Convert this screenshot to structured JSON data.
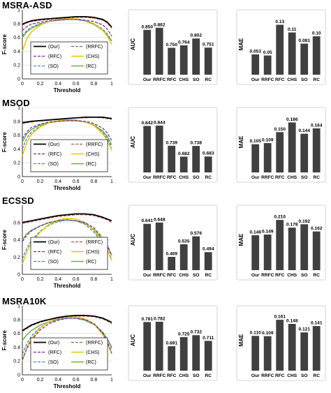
{
  "colors": {
    "bar": "#404040",
    "our": "#000000",
    "rrfc": "#c0504d",
    "rfc": "#7030a0",
    "chs": "#e8c600",
    "so": "#4f81bd",
    "rc": "#70ad47"
  },
  "chart_data": [
    {
      "type": "line",
      "dataset": "MSRA-ASD",
      "xlabel": "Threshold",
      "ylabel": "F-score",
      "xlim": [
        0,
        1
      ],
      "ylim": [
        0,
        1
      ],
      "xticks": [
        "0",
        "0.2",
        "0.4",
        "0.6",
        "0.8",
        "1"
      ],
      "yticks": [
        "0",
        "0.2",
        "0.4",
        "0.6",
        "0.8",
        "1"
      ],
      "legend": [
        "(Our)",
        "(RRFC)",
        "(RFC)",
        "(CHS)",
        "(SO)",
        "(RC)"
      ],
      "x": [
        0,
        0.05,
        0.1,
        0.2,
        0.3,
        0.4,
        0.5,
        0.6,
        0.7,
        0.8,
        0.9,
        0.95,
        1
      ],
      "series": [
        {
          "name": "(Our)",
          "values": [
            0.79,
            0.82,
            0.84,
            0.86,
            0.87,
            0.88,
            0.89,
            0.9,
            0.9,
            0.89,
            0.86,
            0.82,
            0.75
          ]
        },
        {
          "name": "(RRFC)",
          "values": [
            0.78,
            0.81,
            0.83,
            0.85,
            0.86,
            0.87,
            0.88,
            0.89,
            0.89,
            0.88,
            0.85,
            0.81,
            0.73
          ]
        },
        {
          "name": "(RFC)",
          "values": [
            0.7,
            0.76,
            0.79,
            0.82,
            0.84,
            0.85,
            0.86,
            0.86,
            0.85,
            0.83,
            0.78,
            0.72,
            0.62
          ]
        },
        {
          "name": "(CHS)",
          "values": [
            0.4,
            0.58,
            0.68,
            0.78,
            0.83,
            0.86,
            0.87,
            0.87,
            0.85,
            0.8,
            0.7,
            0.62,
            0.5
          ]
        },
        {
          "name": "(SO)",
          "values": [
            0.62,
            0.7,
            0.75,
            0.8,
            0.83,
            0.85,
            0.86,
            0.86,
            0.84,
            0.8,
            0.72,
            0.65,
            0.55
          ]
        },
        {
          "name": "(RC)",
          "values": [
            0.6,
            0.68,
            0.73,
            0.79,
            0.83,
            0.85,
            0.86,
            0.86,
            0.84,
            0.79,
            0.7,
            0.63,
            0.55
          ]
        }
      ]
    },
    {
      "type": "bar",
      "dataset": "MSRA-ASD",
      "ylabel": "AUC",
      "ylim": [
        0.6,
        0.9
      ],
      "categories": [
        "Our",
        "RRFC",
        "RFC",
        "CHS",
        "SO",
        "RC"
      ],
      "values": [
        0.85,
        0.862,
        0.75,
        0.764,
        0.802,
        0.751
      ],
      "labels": [
        "0.850",
        "0.862",
        "0.750",
        "0.764",
        "0.802",
        "0.751"
      ]
    },
    {
      "type": "bar",
      "dataset": "MSRA-ASD",
      "ylabel": "MAE",
      "ylim": [
        0,
        0.14
      ],
      "categories": [
        "Our",
        "RRFC",
        "RFC",
        "CHS",
        "SO",
        "RC"
      ],
      "values": [
        0.053,
        0.05,
        0.13,
        0.11,
        0.081,
        0.1
      ],
      "labels": [
        "0.053",
        "0.05",
        "0.13",
        "0.11",
        "0.081",
        "0.10"
      ]
    },
    {
      "type": "line",
      "dataset": "MSOD",
      "xlabel": "Threshold",
      "ylabel": "F-score",
      "xlim": [
        0,
        1
      ],
      "ylim": [
        0,
        1
      ],
      "xticks": [
        "0",
        "0.2",
        "0.4",
        "0.6",
        "0.8",
        "1"
      ],
      "yticks": [
        "0",
        "0.2",
        "0.4",
        "0.6",
        "0.8",
        "1"
      ],
      "legend": [
        "(Our)",
        "(RRFC)",
        "(RFC)",
        "(CHS)",
        "(SO)",
        "(RC)"
      ],
      "x": [
        0,
        0.05,
        0.1,
        0.2,
        0.3,
        0.4,
        0.5,
        0.6,
        0.7,
        0.8,
        0.9,
        0.95,
        1
      ],
      "series": [
        {
          "name": "(Our)",
          "values": [
            0.78,
            0.79,
            0.8,
            0.81,
            0.82,
            0.83,
            0.84,
            0.85,
            0.86,
            0.86,
            0.86,
            0.85,
            0.84
          ]
        },
        {
          "name": "(RRFC)",
          "values": [
            0.77,
            0.78,
            0.79,
            0.81,
            0.82,
            0.83,
            0.84,
            0.85,
            0.85,
            0.86,
            0.85,
            0.84,
            0.83
          ]
        },
        {
          "name": "(RFC)",
          "values": [
            0.55,
            0.65,
            0.71,
            0.76,
            0.79,
            0.8,
            0.81,
            0.81,
            0.8,
            0.77,
            0.7,
            0.63,
            0.52
          ]
        },
        {
          "name": "(CHS)",
          "values": [
            0.3,
            0.5,
            0.61,
            0.72,
            0.78,
            0.81,
            0.82,
            0.82,
            0.79,
            0.74,
            0.62,
            0.52,
            0.38
          ]
        },
        {
          "name": "(SO)",
          "values": [
            0.4,
            0.56,
            0.64,
            0.73,
            0.78,
            0.8,
            0.81,
            0.81,
            0.79,
            0.74,
            0.64,
            0.55,
            0.42
          ]
        },
        {
          "name": "(RC)",
          "values": [
            0.5,
            0.62,
            0.68,
            0.75,
            0.78,
            0.8,
            0.81,
            0.81,
            0.79,
            0.75,
            0.66,
            0.58,
            0.46
          ]
        }
      ]
    },
    {
      "type": "bar",
      "dataset": "MSOD",
      "ylabel": "AUC",
      "ylim": [
        0.6,
        0.88
      ],
      "categories": [
        "Our",
        "RRFC",
        "RFC",
        "CHS",
        "SO",
        "RC"
      ],
      "values": [
        0.842,
        0.844,
        0.739,
        0.682,
        0.738,
        0.683
      ],
      "labels": [
        "0.842",
        "0.844",
        "0.739",
        "0.682",
        "0.738",
        "0.683"
      ]
    },
    {
      "type": "bar",
      "dataset": "MSOD",
      "ylabel": "MAE",
      "ylim": [
        0,
        0.2
      ],
      "categories": [
        "Our",
        "RRFC",
        "RFC",
        "CHS",
        "SO",
        "RC"
      ],
      "values": [
        0.105,
        0.109,
        0.15,
        0.186,
        0.144,
        0.164
      ],
      "labels": [
        "0.105",
        "0.109",
        "0.150",
        "0.186",
        "0.144",
        "0.164"
      ]
    },
    {
      "type": "line",
      "dataset": "ECSSD",
      "xlabel": "Threshold",
      "ylabel": "F-score",
      "xlim": [
        0,
        1
      ],
      "ylim": [
        0,
        0.8
      ],
      "xticks": [
        "0",
        "0.2",
        "0.4",
        "0.6",
        "0.8",
        "1"
      ],
      "yticks": [
        "0",
        "0.2",
        "0.4",
        "0.6"
      ],
      "legend": [
        "(Our)",
        "(RRFC)",
        "(RFC)",
        "(CHS)",
        "(SO)",
        "(RC)"
      ],
      "x": [
        0,
        0.05,
        0.1,
        0.2,
        0.3,
        0.4,
        0.5,
        0.6,
        0.7,
        0.8,
        0.9,
        0.95,
        1
      ],
      "series": [
        {
          "name": "(Our)",
          "values": [
            0.6,
            0.61,
            0.62,
            0.64,
            0.66,
            0.68,
            0.69,
            0.7,
            0.7,
            0.69,
            0.66,
            0.64,
            0.62
          ]
        },
        {
          "name": "(RRFC)",
          "values": [
            0.59,
            0.6,
            0.61,
            0.63,
            0.65,
            0.67,
            0.68,
            0.69,
            0.69,
            0.68,
            0.65,
            0.63,
            0.6
          ]
        },
        {
          "name": "(RFC)",
          "values": [
            0.38,
            0.45,
            0.5,
            0.56,
            0.6,
            0.62,
            0.63,
            0.62,
            0.6,
            0.54,
            0.42,
            0.34,
            0.22
          ]
        },
        {
          "name": "(CHS)",
          "values": [
            0.12,
            0.26,
            0.36,
            0.49,
            0.58,
            0.63,
            0.65,
            0.64,
            0.6,
            0.51,
            0.38,
            0.28,
            0.16
          ]
        },
        {
          "name": "(SO)",
          "values": [
            0.18,
            0.3,
            0.39,
            0.5,
            0.57,
            0.61,
            0.63,
            0.62,
            0.58,
            0.49,
            0.36,
            0.28,
            0.18
          ]
        },
        {
          "name": "(RC)",
          "values": [
            0.4,
            0.47,
            0.51,
            0.56,
            0.6,
            0.62,
            0.63,
            0.62,
            0.59,
            0.52,
            0.4,
            0.32,
            0.22
          ]
        }
      ]
    },
    {
      "type": "bar",
      "dataset": "ECSSD",
      "ylabel": "AUC",
      "ylim": [
        0.4,
        0.68
      ],
      "categories": [
        "Our",
        "RRFC",
        "RFC",
        "CHS",
        "SO",
        "RC"
      ],
      "values": [
        0.641,
        0.648,
        0.469,
        0.535,
        0.576,
        0.494
      ],
      "labels": [
        "0.641",
        "0.648",
        "0.469",
        "0.535",
        "0.576",
        "0.494"
      ]
    },
    {
      "type": "bar",
      "dataset": "ECSSD",
      "ylabel": "MAE",
      "ylim": [
        0,
        0.225
      ],
      "categories": [
        "Our",
        "RRFC",
        "RFC",
        "CHS",
        "SO",
        "RC"
      ],
      "values": [
        0.146,
        0.149,
        0.21,
        0.178,
        0.192,
        0.162
      ],
      "labels": [
        "0.146",
        "0.149",
        "0.210",
        "0.178",
        "0.192",
        "0.162"
      ]
    },
    {
      "type": "line",
      "dataset": "MSRA10K",
      "xlabel": "Threshold",
      "ylabel": "F-score",
      "xlim": [
        0,
        1
      ],
      "ylim": [
        0,
        1
      ],
      "xticks": [
        "0",
        "0.2",
        "0.4",
        "0.6",
        "0.8",
        "1"
      ],
      "yticks": [
        "0",
        "0.2",
        "0.4",
        "0.6",
        "0.8",
        "1"
      ],
      "legend": [
        "(Our)",
        "(RRFC)",
        "(RFC)",
        "(CHS)",
        "(SO)",
        "(RC)"
      ],
      "x": [
        0,
        0.05,
        0.1,
        0.2,
        0.3,
        0.4,
        0.5,
        0.6,
        0.7,
        0.8,
        0.9,
        0.95,
        1
      ],
      "series": [
        {
          "name": "(Our)",
          "values": [
            0.64,
            0.68,
            0.72,
            0.77,
            0.8,
            0.83,
            0.85,
            0.86,
            0.86,
            0.85,
            0.82,
            0.79,
            0.76
          ]
        },
        {
          "name": "(RRFC)",
          "values": [
            0.63,
            0.67,
            0.71,
            0.76,
            0.8,
            0.82,
            0.84,
            0.85,
            0.85,
            0.84,
            0.81,
            0.78,
            0.74
          ]
        },
        {
          "name": "(RFC)",
          "values": [
            0.22,
            0.38,
            0.5,
            0.65,
            0.74,
            0.79,
            0.82,
            0.82,
            0.8,
            0.74,
            0.6,
            0.48,
            0.32
          ]
        },
        {
          "name": "(CHS)",
          "values": [
            0.2,
            0.4,
            0.52,
            0.68,
            0.77,
            0.82,
            0.84,
            0.84,
            0.81,
            0.74,
            0.58,
            0.46,
            0.3
          ]
        },
        {
          "name": "(SO)",
          "values": [
            0.3,
            0.45,
            0.56,
            0.69,
            0.76,
            0.8,
            0.82,
            0.82,
            0.8,
            0.74,
            0.62,
            0.52,
            0.38
          ]
        },
        {
          "name": "(RC)",
          "values": [
            0.5,
            0.58,
            0.64,
            0.72,
            0.77,
            0.8,
            0.82,
            0.82,
            0.79,
            0.73,
            0.61,
            0.52,
            0.4
          ]
        }
      ]
    },
    {
      "type": "bar",
      "dataset": "MSRA10K",
      "ylabel": "AUC",
      "ylim": [
        0.6,
        0.8
      ],
      "categories": [
        "Our",
        "RRFC",
        "RFC",
        "CHS",
        "SO",
        "RC"
      ],
      "values": [
        0.781,
        0.782,
        0.691,
        0.725,
        0.732,
        0.711
      ],
      "labels": [
        "0.781",
        "0.782",
        "0.691",
        "0.725",
        "0.732",
        "0.711"
      ]
    },
    {
      "type": "bar",
      "dataset": "MSRA10K",
      "ylabel": "MAE",
      "ylim": [
        0,
        0.17
      ],
      "categories": [
        "Our",
        "RRFC",
        "RFC",
        "CHS",
        "SO",
        "RC"
      ],
      "values": [
        0.11,
        0.109,
        0.161,
        0.148,
        0.121,
        0.141
      ],
      "labels": [
        "0.110",
        "0.109",
        "0.161",
        "0.148",
        "0.121",
        "0.141"
      ]
    }
  ]
}
